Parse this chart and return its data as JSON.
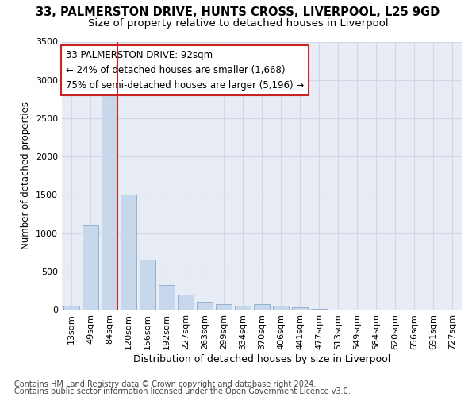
{
  "title1": "33, PALMERSTON DRIVE, HUNTS CROSS, LIVERPOOL, L25 9GD",
  "title2": "Size of property relative to detached houses in Liverpool",
  "xlabel": "Distribution of detached houses by size in Liverpool",
  "ylabel": "Number of detached properties",
  "categories": [
    "13sqm",
    "49sqm",
    "84sqm",
    "120sqm",
    "156sqm",
    "192sqm",
    "227sqm",
    "263sqm",
    "299sqm",
    "334sqm",
    "370sqm",
    "406sqm",
    "441sqm",
    "477sqm",
    "513sqm",
    "549sqm",
    "584sqm",
    "620sqm",
    "656sqm",
    "691sqm",
    "727sqm"
  ],
  "values": [
    50,
    1100,
    2900,
    1500,
    650,
    325,
    200,
    100,
    75,
    50,
    75,
    50,
    30,
    10,
    0,
    0,
    0,
    0,
    0,
    0,
    0
  ],
  "bar_color": "#c8d8ec",
  "bar_edge_color": "#8aaac8",
  "annotation_line1": "33 PALMERSTON DRIVE: 92sqm",
  "annotation_line2": "← 24% of detached houses are smaller (1,668)",
  "annotation_line3": "75% of semi-detached houses are larger (5,196) →",
  "annotation_box_color": "#ffffff",
  "annotation_box_edge": "#cc2222",
  "red_line_color": "#cc2222",
  "ylim": [
    0,
    3500
  ],
  "yticks": [
    0,
    500,
    1000,
    1500,
    2000,
    2500,
    3000,
    3500
  ],
  "grid_color": "#d0d8e8",
  "background_color": "#e8ecf4",
  "footer1": "Contains HM Land Registry data © Crown copyright and database right 2024.",
  "footer2": "Contains public sector information licensed under the Open Government Licence v3.0.",
  "title1_fontsize": 10.5,
  "title2_fontsize": 9.5,
  "xlabel_fontsize": 9,
  "ylabel_fontsize": 8.5,
  "tick_fontsize": 8,
  "annotation_fontsize": 8.5,
  "footer_fontsize": 7
}
